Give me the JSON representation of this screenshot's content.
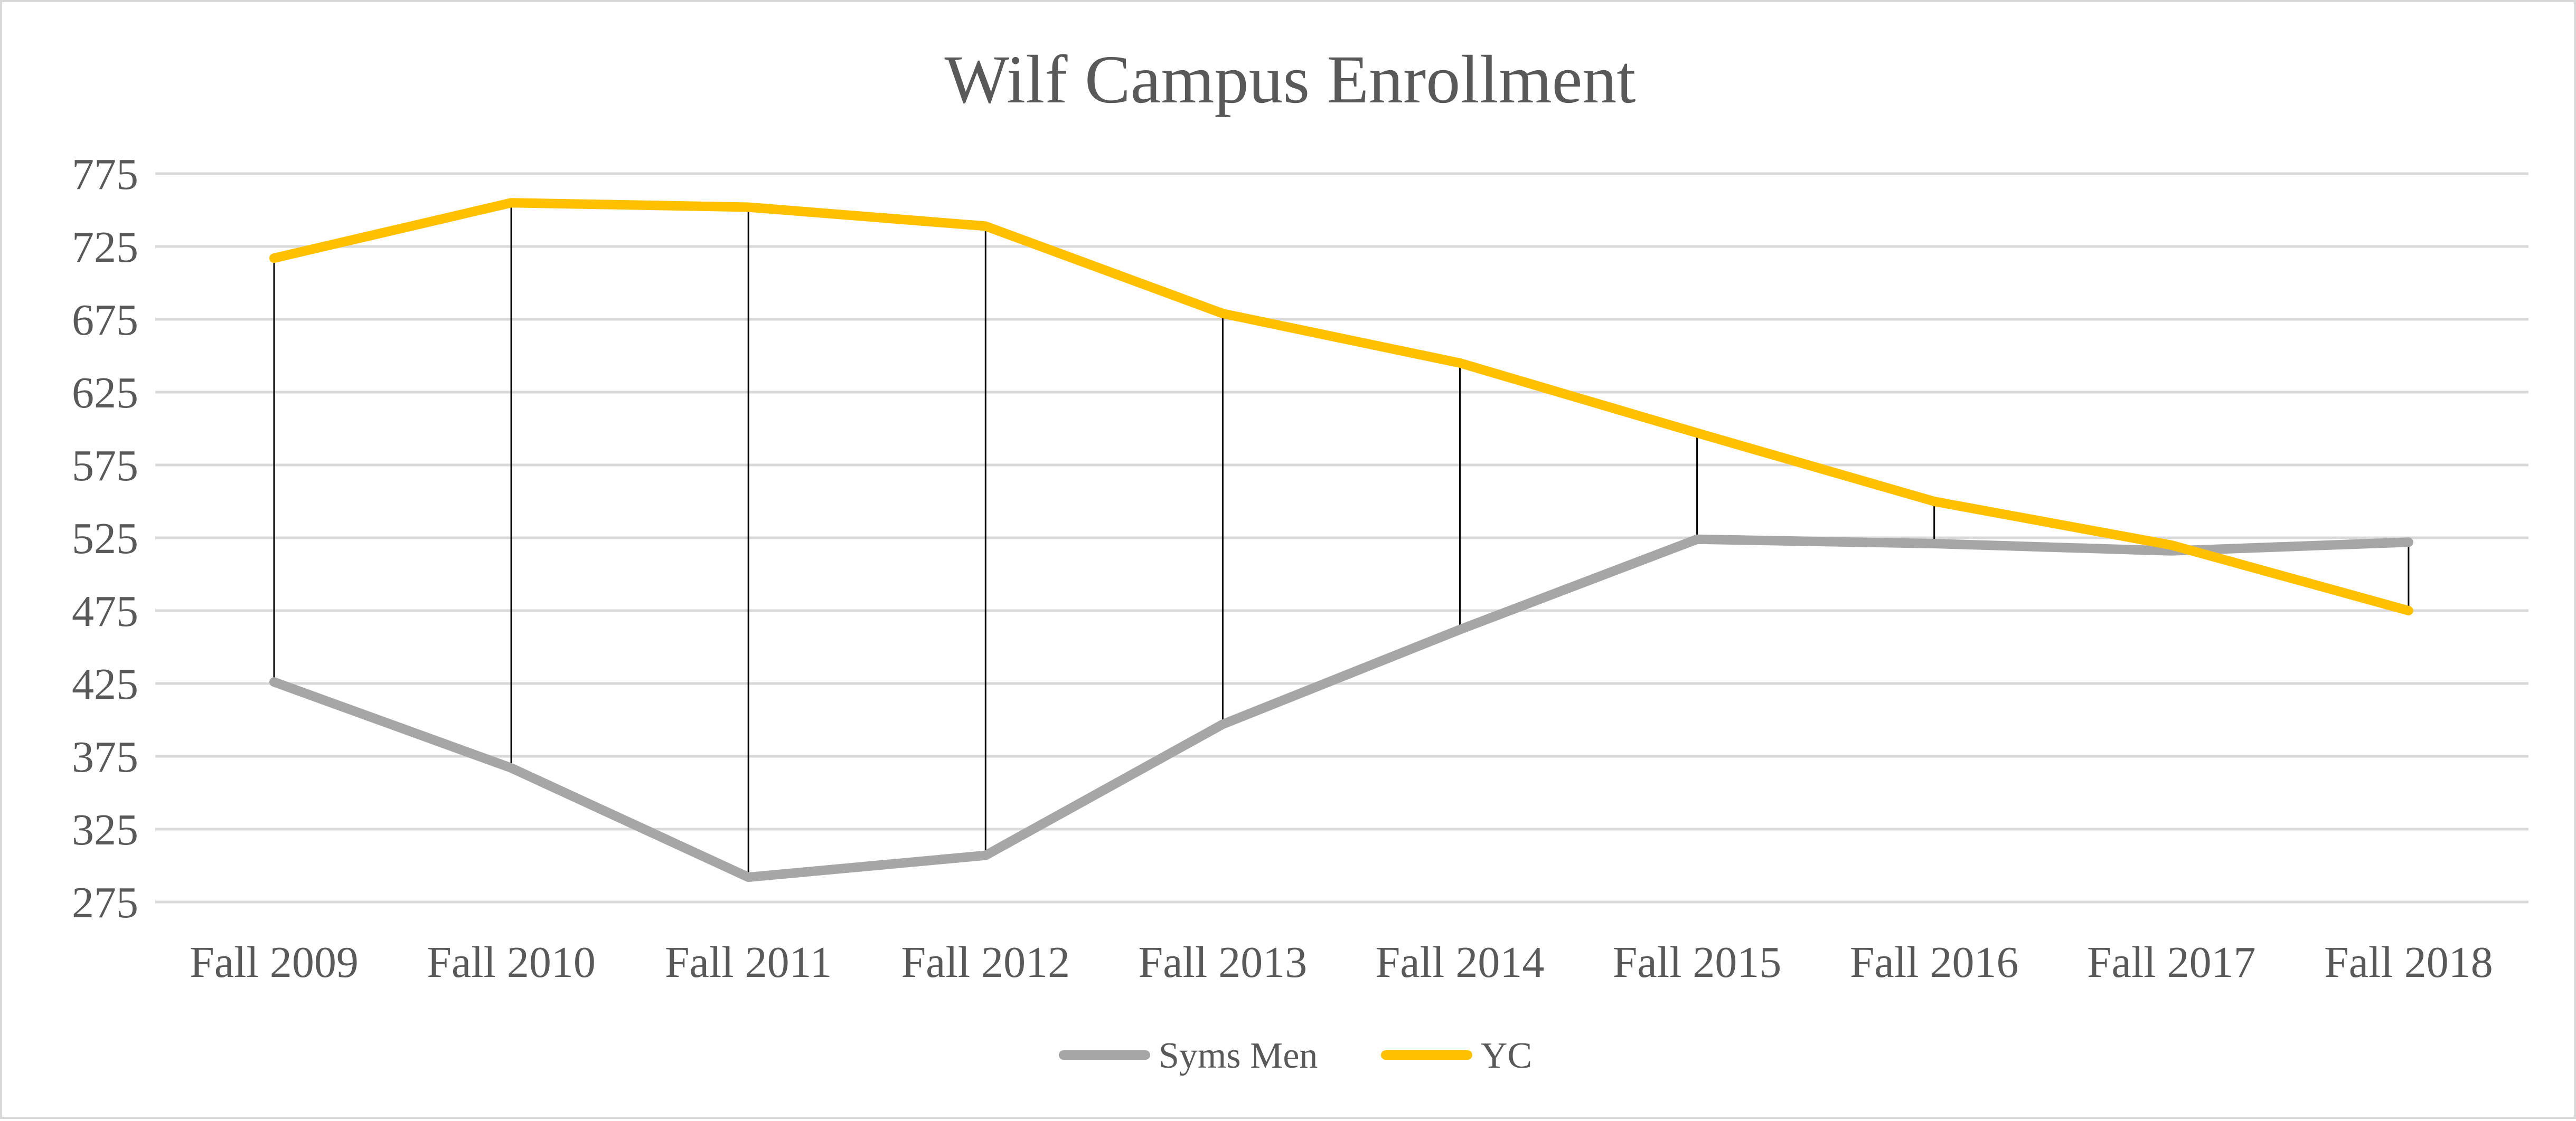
{
  "chart_data": {
    "type": "line",
    "title": "Wilf Campus Enrollment",
    "xlabel": "",
    "ylabel": "",
    "categories": [
      "Fall 2009",
      "Fall 2010",
      "Fall 2011",
      "Fall 2012",
      "Fall 2013",
      "Fall 2014",
      "Fall 2015",
      "Fall 2016",
      "Fall 2017",
      "Fall 2018"
    ],
    "y_ticks": [
      "775",
      "725",
      "675",
      "625",
      "575",
      "525",
      "475",
      "425",
      "375",
      "325",
      "275"
    ],
    "ylim": [
      275,
      775
    ],
    "grid": true,
    "drop_lines": true,
    "legend_position": "bottom",
    "series": [
      {
        "name": "Syms Men",
        "color": "#a6a6a6",
        "values": [
          426,
          367,
          292,
          307,
          397,
          462,
          524,
          521,
          516,
          522
        ]
      },
      {
        "name": "YC",
        "color": "#ffc000",
        "values": [
          717,
          755,
          752,
          739,
          679,
          645,
          597,
          550,
          520,
          475
        ]
      }
    ],
    "colors": {
      "grid": "#d9d9d9",
      "drop_line": "#000000",
      "text": "#595959"
    }
  }
}
